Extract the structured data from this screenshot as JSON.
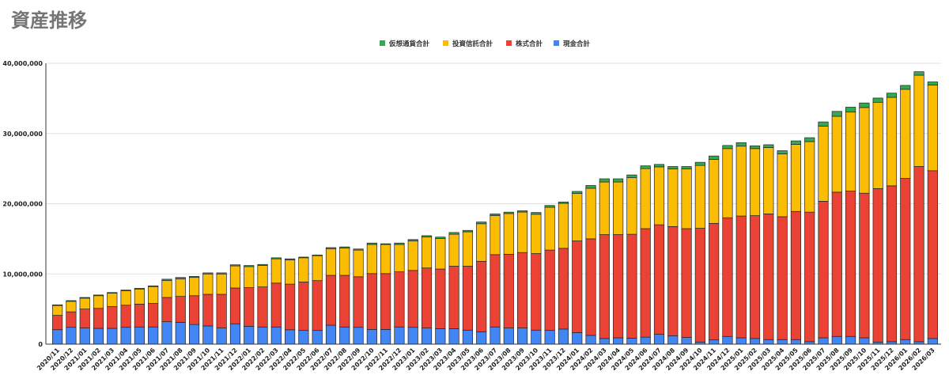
{
  "chart_data": {
    "type": "bar",
    "stacked": true,
    "title": "資産推移",
    "xlabel": "",
    "ylabel": "",
    "ylim": [
      0,
      40000000
    ],
    "yticks": [
      0,
      10000000,
      20000000,
      30000000,
      40000000
    ],
    "ytick_labels": [
      "0",
      "10,000,000",
      "20,000,000",
      "30,000,000",
      "40,000,000"
    ],
    "grid": true,
    "legend_position": "top",
    "legend_order": [
      "仮想通貨合計",
      "投資信託合計",
      "株式合計",
      "現金合計"
    ],
    "categories": [
      "2020/11",
      "2020/12",
      "2021/01",
      "2021/02",
      "2021/03",
      "2021/04",
      "2021/05",
      "2021/06",
      "2021/07",
      "2021/08",
      "2021/09",
      "2021/10",
      "2021/11",
      "2021/12",
      "2022/01",
      "2022/02",
      "2022/03",
      "2022/04",
      "2022/05",
      "2022/06",
      "2022/07",
      "2022/08",
      "2022/09",
      "2022/10",
      "2022/11",
      "2022/12",
      "2023/01",
      "2023/02",
      "2023/03",
      "2023/04",
      "2023/05",
      "2023/06",
      "2023/07",
      "2023/08",
      "2023/09",
      "2023/10",
      "2023/11",
      "2023/12",
      "2024/01",
      "2024/02",
      "2024/03",
      "2024/04",
      "2024/05",
      "2024/06",
      "2024/07",
      "2024/08",
      "2024/09",
      "2024/10",
      "2024/11",
      "2024/12",
      "2025/01",
      "2025/02",
      "2025/03",
      "2025/04",
      "2025/05",
      "2025/06",
      "2025/07",
      "2025/08",
      "2025/09",
      "2025/10",
      "2025/11",
      "2025/12",
      "2026/01",
      "2026/02",
      "2026/03"
    ],
    "series": [
      {
        "name": "現金合計",
        "color": "#4285f4",
        "values": [
          2060000,
          2400000,
          2300000,
          2250000,
          2250000,
          2400000,
          2450000,
          2450000,
          3200000,
          3100000,
          2800000,
          2600000,
          2300000,
          2900000,
          2550000,
          2450000,
          2450000,
          2050000,
          1950000,
          1950000,
          2700000,
          2450000,
          2400000,
          2100000,
          2100000,
          2450000,
          2400000,
          2300000,
          2200000,
          2200000,
          2000000,
          1750000,
          2450000,
          2300000,
          2300000,
          2000000,
          1950000,
          2150000,
          1650000,
          1250000,
          800000,
          900000,
          850000,
          1000000,
          1400000,
          1200000,
          950000,
          300000,
          600000,
          1100000,
          900000,
          800000,
          650000,
          650000,
          650000,
          350000,
          900000,
          1100000,
          1100000,
          900000,
          300000,
          350000,
          650000,
          350000,
          800000
        ]
      },
      {
        "name": "株式合計",
        "color": "#ea4335",
        "values": [
          2040000,
          2200000,
          2700000,
          2850000,
          3100000,
          3150000,
          3250000,
          3350000,
          3450000,
          3700000,
          4100000,
          4500000,
          4800000,
          5100000,
          5500000,
          5700000,
          6250000,
          6500000,
          6900000,
          7100000,
          7100000,
          7350000,
          7200000,
          7950000,
          7950000,
          7850000,
          8100000,
          8550000,
          8500000,
          8900000,
          9100000,
          10050000,
          10300000,
          10500000,
          10750000,
          10900000,
          11450000,
          11500000,
          13050000,
          13750000,
          14800000,
          14700000,
          14800000,
          15450000,
          15600000,
          15550000,
          15500000,
          16200000,
          16600000,
          16900000,
          17350000,
          17500000,
          17900000,
          17500000,
          18250000,
          18450000,
          19450000,
          20550000,
          20700000,
          20600000,
          21850000,
          22200000,
          22950000,
          24950000,
          23900000
        ]
      },
      {
        "name": "投資信託合計",
        "color": "#fbbc04",
        "values": [
          1400000,
          1500000,
          1550000,
          1800000,
          1900000,
          2050000,
          2150000,
          2400000,
          2400000,
          2500000,
          2600000,
          2900000,
          2900000,
          3150000,
          3000000,
          3050000,
          3450000,
          3450000,
          3450000,
          3550000,
          3800000,
          3900000,
          3800000,
          4150000,
          4150000,
          3900000,
          4200000,
          4400000,
          4350000,
          4550000,
          4900000,
          5350000,
          5550000,
          5800000,
          5750000,
          5600000,
          6100000,
          6400000,
          6750000,
          7200000,
          7500000,
          7500000,
          8050000,
          8550000,
          8250000,
          8200000,
          8500000,
          8950000,
          9100000,
          9850000,
          9950000,
          9550000,
          9450000,
          8950000,
          9550000,
          10050000,
          10700000,
          10800000,
          11250000,
          12200000,
          12300000,
          12600000,
          12700000,
          13000000,
          12200000
        ]
      },
      {
        "name": "仮想通貨合計",
        "color": "#34a853",
        "values": [
          100000,
          100000,
          100000,
          100000,
          100000,
          100000,
          100000,
          100000,
          200000,
          200000,
          150000,
          150000,
          150000,
          150000,
          150000,
          150000,
          150000,
          150000,
          100000,
          100000,
          150000,
          150000,
          150000,
          200000,
          100000,
          200000,
          200000,
          200000,
          200000,
          250000,
          200000,
          250000,
          250000,
          200000,
          200000,
          250000,
          250000,
          200000,
          300000,
          400000,
          450000,
          450000,
          400000,
          400000,
          350000,
          350000,
          350000,
          450000,
          500000,
          450000,
          500000,
          400000,
          400000,
          450000,
          500000,
          550000,
          600000,
          700000,
          700000,
          650000,
          600000,
          600000,
          550000,
          500000,
          450000
        ]
      }
    ]
  }
}
